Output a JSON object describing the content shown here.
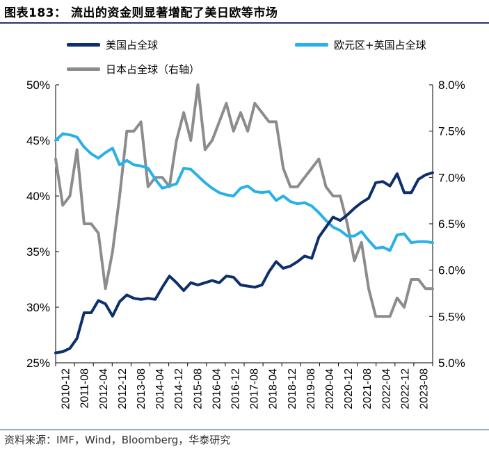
{
  "header": {
    "title": "图表183： 流出的资金则显著增配了美日欧等市场"
  },
  "footer": {
    "source": "资料来源：IMF，Wind，Bloomberg，华泰研究"
  },
  "colors": {
    "us": "#0d2f6b",
    "eu_uk": "#29b0e8",
    "japan": "#8c8c8c",
    "rule": "#1f3864"
  },
  "chart_data": {
    "type": "line",
    "legend_position": "top",
    "grid": false,
    "x_tick_labels": [
      "2010-12",
      "2011-08",
      "2012-04",
      "2012-12",
      "2013-08",
      "2014-04",
      "2014-12",
      "2015-08",
      "2016-04",
      "2016-12",
      "2017-08",
      "2018-04",
      "2018-12",
      "2019-08",
      "2020-04",
      "2020-12",
      "2021-08",
      "2022-04",
      "2022-12",
      "2023-08"
    ],
    "left_axis": {
      "min": 25,
      "max": 50,
      "ticks": [
        "25%",
        "30%",
        "35%",
        "40%",
        "45%",
        "50%"
      ]
    },
    "right_axis": {
      "min": 5.0,
      "max": 8.0,
      "ticks": [
        "5.0%",
        "5.5%",
        "6.0%",
        "6.5%",
        "7.0%",
        "7.5%",
        "8.0%"
      ]
    },
    "series": [
      {
        "name": "美国占全球",
        "axis": "left",
        "values": [
          25.9,
          26.0,
          26.3,
          27.2,
          29.5,
          29.5,
          30.6,
          30.3,
          29.2,
          30.5,
          31.1,
          30.8,
          30.7,
          30.8,
          30.7,
          31.8,
          32.8,
          32.2,
          31.5,
          32.2,
          32.0,
          32.2,
          32.4,
          32.2,
          32.8,
          32.7,
          32.0,
          31.9,
          31.8,
          32.0,
          33.2,
          34.1,
          33.5,
          33.7,
          34.1,
          34.6,
          34.4,
          36.3,
          37.2,
          38.1,
          37.8,
          38.3,
          38.9,
          39.4,
          39.8,
          41.2,
          41.3,
          40.9,
          42.0,
          40.3,
          40.3,
          41.5,
          41.9,
          42.1
        ]
      },
      {
        "name": "欧元区+英国占全球",
        "axis": "left",
        "values": [
          45.0,
          45.6,
          45.5,
          45.3,
          44.4,
          43.8,
          43.4,
          43.9,
          44.3,
          42.8,
          43.2,
          42.8,
          42.7,
          42.5,
          41.5,
          40.7,
          40.9,
          41.1,
          42.5,
          42.4,
          41.8,
          41.2,
          40.7,
          40.3,
          40.1,
          40.0,
          40.7,
          40.9,
          40.4,
          40.3,
          40.4,
          39.6,
          40.0,
          39.5,
          39.3,
          39.4,
          39.1,
          38.5,
          37.8,
          37.2,
          36.9,
          36.4,
          36.4,
          36.8,
          36.0,
          35.3,
          35.4,
          35.1,
          36.5,
          36.6,
          35.8,
          35.9,
          35.9,
          35.8
        ]
      },
      {
        "name": "日本占全球（右轴）",
        "axis": "right",
        "values": [
          7.2,
          6.7,
          6.8,
          7.3,
          6.5,
          6.5,
          6.4,
          5.8,
          6.2,
          6.8,
          7.5,
          7.5,
          7.6,
          6.9,
          7.0,
          7.0,
          6.9,
          7.4,
          7.7,
          7.4,
          8.0,
          7.3,
          7.4,
          7.6,
          7.8,
          7.5,
          7.7,
          7.5,
          7.8,
          7.7,
          7.6,
          7.6,
          7.1,
          6.9,
          6.9,
          7.0,
          7.1,
          7.2,
          6.9,
          6.8,
          6.8,
          6.5,
          6.1,
          6.3,
          5.8,
          5.5,
          5.5,
          5.5,
          5.7,
          5.6,
          5.9,
          5.9,
          5.8,
          5.8
        ]
      }
    ]
  }
}
